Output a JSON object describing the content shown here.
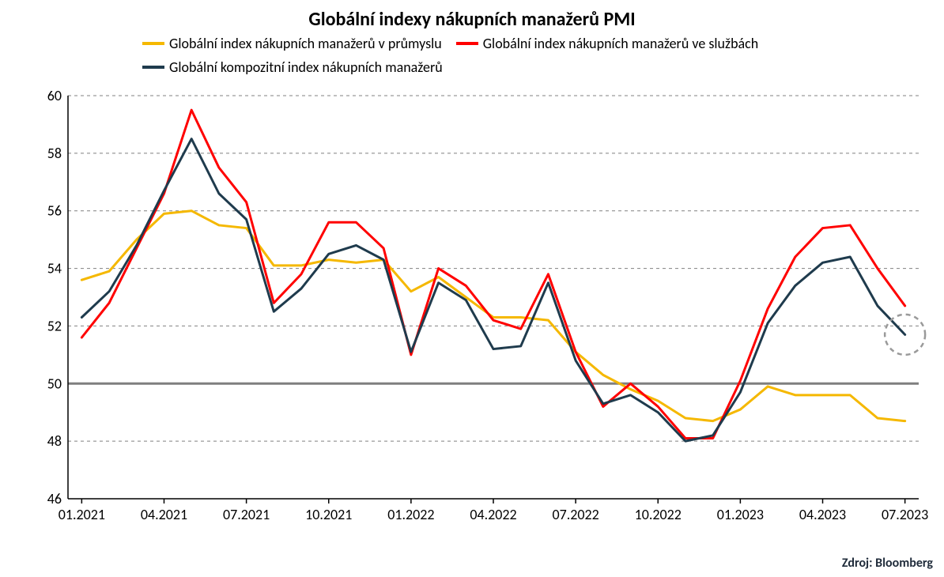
{
  "chart": {
    "type": "line",
    "title": "Globální indexy nákupních manažerů PMI",
    "title_fontsize": 24,
    "background_color": "#ffffff",
    "grid_color": "#808080",
    "grid_dash": "4,4",
    "axis_color": "#000000",
    "reference_line_y": 50,
    "reference_line_color": "#7f7f7f",
    "reference_line_width": 3,
    "source_text": "Zdroj: Bloomberg",
    "highlight": {
      "series_index": 2,
      "point_index": 30,
      "circle_color": "#9a9a9a",
      "circle_dash": "6,5",
      "radius_value_units": 0.7
    },
    "legend": {
      "position": "top",
      "fontsize": 18,
      "items": [
        {
          "label": "Globální index nákupních manažerů v průmyslu",
          "color": "#f5b800"
        },
        {
          "label": "Globální index nákupních manažerů ve službách",
          "color": "#ff0000"
        },
        {
          "label": "Globální kompozitní index nákupních manažerů",
          "color": "#1f3b4d"
        }
      ]
    },
    "x": {
      "categories": [
        "01.2021",
        "02.2021",
        "03.2021",
        "04.2021",
        "05.2021",
        "06.2021",
        "07.2021",
        "08.2021",
        "09.2021",
        "10.2021",
        "11.2021",
        "12.2021",
        "01.2022",
        "02.2022",
        "03.2022",
        "04.2022",
        "05.2022",
        "06.2022",
        "07.2022",
        "08.2022",
        "09.2022",
        "10.2022",
        "11.2022",
        "12.2022",
        "01.2023",
        "02.2023",
        "03.2023",
        "04.2023",
        "05.2023",
        "06.2023",
        "07.2023"
      ],
      "tick_indices": [
        0,
        3,
        6,
        9,
        12,
        15,
        18,
        21,
        24,
        27,
        30
      ],
      "label_fontsize": 18,
      "start_padding": 0.5,
      "end_padding": 0.5
    },
    "y": {
      "min": 46,
      "max": 60,
      "tick_step": 2,
      "label_fontsize": 18
    },
    "series": [
      {
        "name": "Globální index nákupních manažerů v průmyslu",
        "color": "#f5b800",
        "width": 3,
        "values": [
          53.6,
          53.9,
          55.0,
          55.9,
          56.0,
          55.5,
          55.4,
          54.1,
          54.1,
          54.3,
          54.2,
          54.3,
          53.2,
          53.7,
          53.0,
          52.3,
          52.3,
          52.2,
          51.1,
          50.3,
          49.8,
          49.4,
          48.8,
          48.7,
          49.1,
          49.9,
          49.6,
          49.6,
          49.6,
          48.8,
          48.7
        ]
      },
      {
        "name": "Globální index nákupních manažerů ve službách",
        "color": "#ff0000",
        "width": 3,
        "values": [
          51.6,
          52.8,
          54.7,
          56.6,
          59.5,
          57.5,
          56.3,
          52.8,
          53.8,
          55.6,
          55.6,
          54.7,
          51.0,
          54.0,
          53.4,
          52.2,
          51.9,
          53.8,
          51.1,
          49.2,
          50.0,
          49.2,
          48.1,
          48.1,
          50.1,
          52.6,
          54.4,
          55.4,
          55.5,
          54.0,
          52.7
        ]
      },
      {
        "name": "Globální kompozitní index nákupních manažerů",
        "color": "#1f3b4d",
        "width": 3,
        "values": [
          52.3,
          53.2,
          54.8,
          56.7,
          58.5,
          56.6,
          55.7,
          52.5,
          53.3,
          54.5,
          54.8,
          54.3,
          51.1,
          53.5,
          52.9,
          51.2,
          51.3,
          53.5,
          50.8,
          49.3,
          49.6,
          49.0,
          48.0,
          48.2,
          49.7,
          52.1,
          53.4,
          54.2,
          54.4,
          52.7,
          51.7
        ]
      }
    ]
  }
}
